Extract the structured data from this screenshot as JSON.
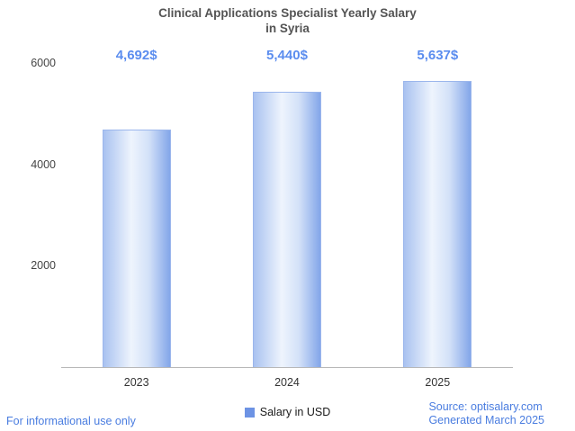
{
  "title_line1": "Clinical Applications Specialist Yearly Salary",
  "title_line2": "in Syria",
  "chart_data": {
    "type": "bar",
    "title": "Clinical Applications Specialist Yearly Salary in Syria",
    "categories": [
      "2023",
      "2024",
      "2025"
    ],
    "values": [
      4692,
      5440,
      5637
    ],
    "value_labels": [
      "4,692$",
      "5,440$",
      "5,637$"
    ],
    "xlabel": "",
    "ylabel": "",
    "ylim": [
      0,
      6000
    ],
    "yticks": [
      2000,
      4000,
      6000
    ],
    "legend_entries": [
      "Salary in USD"
    ],
    "legend_position": "bottom",
    "grid": false,
    "bar_color": "#83a6e9",
    "value_label_color": "#5b8def"
  },
  "legend": {
    "label": "Salary in USD"
  },
  "footer": {
    "left": "For informational use only",
    "source": "Source: optisalary.com",
    "generated": "Generated March 2025"
  }
}
